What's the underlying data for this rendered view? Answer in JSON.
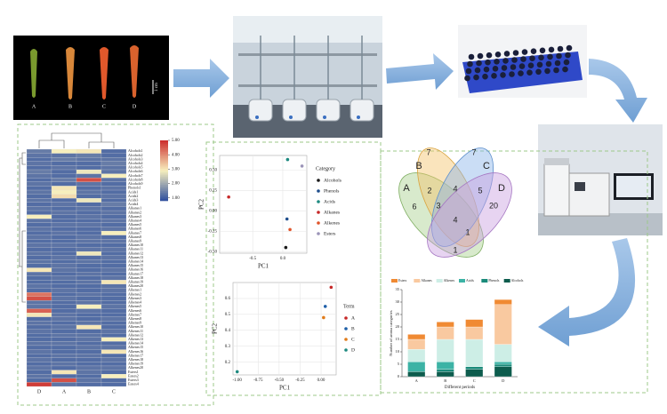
{
  "photos": {
    "samples": [
      "A",
      "B",
      "C",
      "D"
    ],
    "scale": "1 cm"
  },
  "venn": {
    "labels": [
      "A",
      "B",
      "C",
      "D"
    ],
    "counts": [
      7,
      7,
      2,
      4,
      5,
      6,
      3,
      20,
      4,
      1,
      1
    ]
  },
  "chart_data": [
    {
      "type": "heatmap",
      "columns": [
        "D",
        "A",
        "B",
        "C"
      ],
      "rows": [
        "Alcohols1",
        "Alcohols2",
        "Alcohols3",
        "Alcohols4",
        "Alcohols5",
        "Alcohols6",
        "Alcohols7",
        "Alcohols8",
        "Alcohols9",
        "Phenols1",
        "Acids1",
        "Acids2",
        "Acids3",
        "Acids4",
        "Alkanes1",
        "Alkanes2",
        "Alkanes3",
        "Alkanes4",
        "Alkanes5",
        "Alkanes6",
        "Alkanes7",
        "Alkanes8",
        "Alkanes9",
        "Alkanes10",
        "Alkanes11",
        "Alkanes12",
        "Alkanes13",
        "Alkanes14",
        "Alkanes15",
        "Alkanes16",
        "Alkanes17",
        "Alkanes18",
        "Alkanes19",
        "Alkanes20",
        "Alkenes1",
        "Alkenes2",
        "Alkenes3",
        "Alkenes4",
        "Alkenes5",
        "Alkenes6",
        "Alkenes7",
        "Alkenes8",
        "Alkenes9",
        "Alkenes10",
        "Alkenes11",
        "Alkenes12",
        "Alkenes13",
        "Alkenes14",
        "Alkenes15",
        "Alkenes16",
        "Alkenes17",
        "Alkenes18",
        "Alkenes19",
        "Alkenes20",
        "Esters1",
        "Esters2",
        "Esters3",
        "Esters4"
      ],
      "values": [
        [
          1.4,
          2.9,
          3.0,
          1.2
        ],
        [
          1.3,
          1.3,
          1.4,
          1.2
        ],
        [
          1.2,
          1.4,
          1.3,
          1.3
        ],
        [
          1.3,
          1.2,
          1.2,
          1.4
        ],
        [
          1.2,
          1.3,
          1.2,
          1.3
        ],
        [
          1.4,
          1.2,
          2.8,
          1.3
        ],
        [
          1.3,
          1.2,
          1.3,
          2.9
        ],
        [
          1.2,
          1.4,
          4.6,
          1.3
        ],
        [
          1.3,
          1.2,
          1.3,
          1.2
        ],
        [
          1.2,
          3.0,
          1.2,
          1.3
        ],
        [
          1.3,
          2.9,
          1.3,
          1.2
        ],
        [
          1.2,
          3.1,
          1.2,
          1.3
        ],
        [
          1.3,
          1.2,
          2.8,
          1.2
        ],
        [
          1.2,
          1.3,
          1.2,
          1.4
        ],
        [
          1.3,
          1.2,
          1.3,
          1.2
        ],
        [
          1.2,
          1.3,
          1.2,
          1.3
        ],
        [
          2.9,
          1.2,
          1.3,
          1.2
        ],
        [
          1.3,
          1.2,
          1.2,
          1.3
        ],
        [
          1.2,
          1.3,
          1.3,
          1.2
        ],
        [
          1.3,
          1.2,
          1.2,
          1.3
        ],
        [
          1.2,
          1.3,
          1.2,
          2.9
        ],
        [
          1.3,
          1.2,
          1.3,
          1.2
        ],
        [
          1.2,
          1.2,
          1.3,
          1.3
        ],
        [
          1.3,
          1.3,
          1.2,
          1.2
        ],
        [
          1.2,
          1.2,
          1.3,
          1.3
        ],
        [
          1.3,
          1.2,
          2.8,
          1.2
        ],
        [
          1.2,
          1.3,
          1.2,
          1.3
        ],
        [
          1.3,
          1.2,
          1.3,
          1.2
        ],
        [
          1.2,
          1.3,
          1.2,
          1.2
        ],
        [
          3.0,
          1.3,
          1.2,
          1.3
        ],
        [
          1.3,
          1.2,
          1.3,
          1.2
        ],
        [
          1.2,
          1.3,
          1.2,
          1.3
        ],
        [
          1.2,
          1.2,
          1.3,
          3.0
        ],
        [
          1.3,
          1.2,
          1.2,
          1.3
        ],
        [
          1.2,
          1.3,
          1.2,
          1.3
        ],
        [
          4.2,
          1.2,
          1.3,
          1.2
        ],
        [
          4.6,
          1.3,
          1.2,
          1.2
        ],
        [
          1.3,
          1.2,
          1.3,
          1.2
        ],
        [
          1.3,
          1.2,
          2.9,
          1.3
        ],
        [
          4.4,
          1.2,
          1.3,
          1.2
        ],
        [
          3.0,
          1.3,
          1.2,
          1.2
        ],
        [
          1.2,
          1.3,
          1.2,
          1.3
        ],
        [
          1.3,
          1.2,
          1.3,
          1.2
        ],
        [
          1.2,
          1.3,
          3.0,
          1.2
        ],
        [
          1.3,
          1.2,
          1.2,
          1.3
        ],
        [
          1.2,
          1.3,
          1.3,
          1.2
        ],
        [
          1.2,
          1.2,
          1.3,
          2.9
        ],
        [
          1.3,
          1.3,
          1.2,
          1.2
        ],
        [
          1.2,
          1.2,
          1.3,
          1.3
        ],
        [
          1.3,
          1.2,
          1.2,
          3.0
        ],
        [
          1.2,
          1.3,
          1.3,
          1.2
        ],
        [
          1.3,
          1.2,
          1.2,
          1.3
        ],
        [
          1.2,
          1.3,
          1.2,
          1.2
        ],
        [
          1.3,
          1.2,
          1.3,
          1.3
        ],
        [
          1.2,
          3.0,
          1.3,
          1.2
        ],
        [
          1.3,
          1.2,
          1.2,
          2.9
        ],
        [
          1.2,
          4.6,
          1.3,
          1.2
        ],
        [
          4.8,
          1.3,
          1.2,
          1.2
        ]
      ],
      "clim": [
        0.8,
        5
      ],
      "colors": [
        "#2d4e9e",
        "#f7efbd",
        "#cc2a2a"
      ],
      "colorbar_ticks": [
        {
          "value": 5,
          "label": "5.00"
        },
        {
          "value": 4,
          "label": "4.00"
        },
        {
          "value": 3,
          "label": "3.00"
        },
        {
          "value": 2,
          "label": "2.00"
        },
        {
          "value": 1,
          "label": "1.00"
        }
      ]
    },
    {
      "type": "scatter",
      "xlabel": "PC1",
      "ylabel": "PC2",
      "legend_title": "Category",
      "grid": true,
      "xlim": [
        -1.05,
        0.4
      ],
      "ylim": [
        -0.52,
        0.68
      ],
      "xticks": [
        -0.5,
        {
          "value": 0,
          "label": "0.0"
        }
      ],
      "yticks": [
        {
          "value": 0.5,
          "label": "0.50"
        },
        {
          "value": 0.25,
          "label": "0.25"
        },
        {
          "value": 0,
          "label": "0.00"
        },
        {
          "value": -0.25,
          "label": "-0.25"
        },
        {
          "value": -0.5,
          "label": "-0.50"
        }
      ],
      "series": [
        {
          "name": "Alcohols",
          "color": "#1a1a1a",
          "x": [
            0.05
          ],
          "values": [
            -0.45
          ]
        },
        {
          "name": "Phenols",
          "color": "#1f4e8c",
          "x": [
            0.07
          ],
          "values": [
            -0.1
          ]
        },
        {
          "name": "Acids",
          "color": "#1e8a80",
          "x": [
            0.08
          ],
          "values": [
            0.63
          ]
        },
        {
          "name": "Alkanes",
          "color": "#c62828",
          "x": [
            -0.9
          ],
          "values": [
            0.17
          ]
        },
        {
          "name": "Alkenes",
          "color": "#e0542a",
          "x": [
            0.12
          ],
          "values": [
            -0.23
          ]
        },
        {
          "name": "Esters",
          "color": "#9b94b8",
          "x": [
            0.32
          ],
          "values": [
            0.55
          ]
        }
      ]
    },
    {
      "type": "scatter",
      "xlabel": "PC1",
      "ylabel": "PC2",
      "legend_title": "Term",
      "grid": true,
      "xlim": [
        -1.05,
        0.18
      ],
      "ylim": [
        0.12,
        0.7
      ],
      "xticks": [
        {
          "value": -1,
          "label": "-1.00"
        },
        {
          "value": -0.75,
          "label": "-0.75"
        },
        {
          "value": -0.5,
          "label": "-0.50"
        },
        {
          "value": -0.25,
          "label": "-0.25"
        },
        {
          "value": 0,
          "label": "0.00"
        }
      ],
      "yticks": [
        0.2,
        0.3,
        0.4,
        0.5,
        0.6
      ],
      "series": [
        {
          "name": "A",
          "color": "#c62828",
          "x": [
            0.12
          ],
          "values": [
            0.67
          ]
        },
        {
          "name": "B",
          "color": "#1f5fa8",
          "x": [
            0.05
          ],
          "values": [
            0.55
          ]
        },
        {
          "name": "C",
          "color": "#e07b1a",
          "x": [
            0.03
          ],
          "values": [
            0.48
          ]
        },
        {
          "name": "D",
          "color": "#1e8a80",
          "x": [
            -1.0
          ],
          "values": [
            0.14
          ]
        }
      ]
    },
    {
      "type": "bar",
      "xlabel": "Different periods",
      "ylabel": "Number of aroma categories",
      "categories": [
        "A",
        "B",
        "C",
        "D"
      ],
      "ylim": [
        0,
        35
      ],
      "yticks": [
        0,
        5,
        10,
        15,
        20,
        25,
        30,
        35
      ],
      "series": [
        {
          "name": "Esters",
          "color": "#f08a33",
          "values": [
            2,
            2,
            3,
            2
          ]
        },
        {
          "name": "Alkanes",
          "color": "#f9c9a0",
          "values": [
            4,
            5,
            5,
            16
          ]
        },
        {
          "name": "Alkenes",
          "color": "#cdeee6",
          "values": [
            5,
            9,
            11,
            7
          ]
        },
        {
          "name": "Acids",
          "color": "#3cb3a5",
          "values": [
            4,
            3,
            0,
            1
          ]
        },
        {
          "name": "Phenols",
          "color": "#1a8a7a",
          "values": [
            0,
            1,
            1,
            1
          ]
        },
        {
          "name": "Alcohols",
          "color": "#0d5c4d",
          "values": [
            2,
            2,
            3,
            4
          ]
        }
      ]
    }
  ]
}
